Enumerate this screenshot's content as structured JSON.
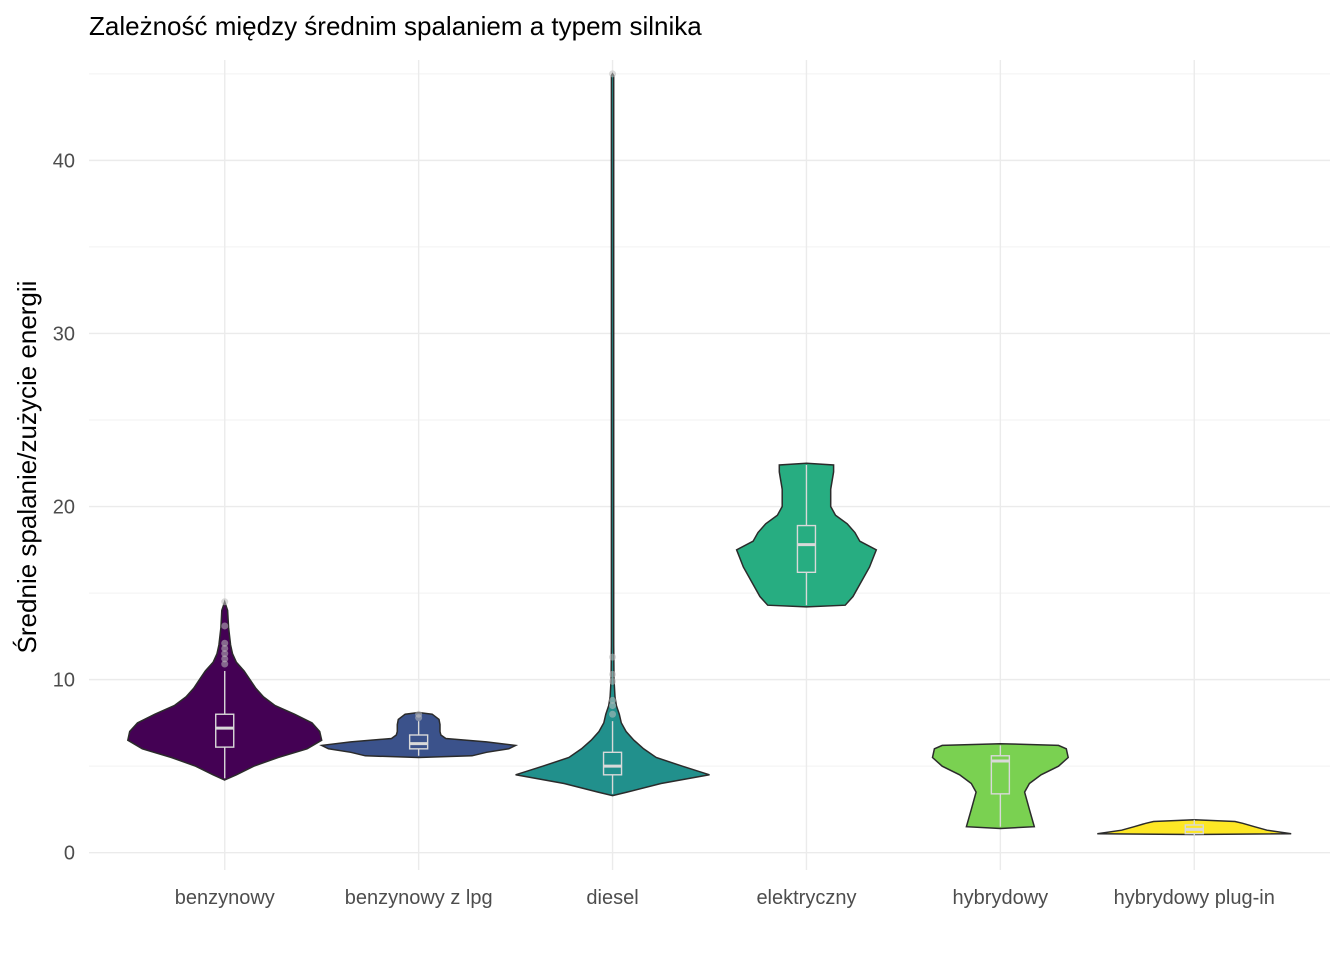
{
  "chart_data": {
    "type": "violin",
    "title": "Zależność między średnim spalaniem a typem silnika",
    "xlabel": "",
    "ylabel": "Średnie spalanie/zużycie energii",
    "ylim": [
      -1,
      45.8
    ],
    "y_ticks": [
      0,
      10,
      20,
      30,
      40
    ],
    "grid": true,
    "legend": "none",
    "categories": [
      "benzynowy",
      "benzynowy z lpg",
      "diesel",
      "elektryczny",
      "hybrydowy",
      "hybrydowy plug-in"
    ],
    "series": [
      {
        "name": "benzynowy",
        "color": "#440154",
        "box": {
          "q1": 6.1,
          "median": 7.2,
          "q3": 8.0,
          "lower": 4.3,
          "upper": 10.5
        },
        "outliers": [
          10.9,
          11.2,
          11.5,
          11.8,
          12.1,
          13.1,
          14.5
        ],
        "density": [
          [
            4.2,
            0.0
          ],
          [
            4.5,
            0.12
          ],
          [
            5.0,
            0.3
          ],
          [
            5.5,
            0.55
          ],
          [
            6.0,
            0.85
          ],
          [
            6.5,
            1.0
          ],
          [
            7.0,
            0.98
          ],
          [
            7.5,
            0.9
          ],
          [
            8.0,
            0.72
          ],
          [
            8.5,
            0.52
          ],
          [
            9.0,
            0.4
          ],
          [
            9.5,
            0.32
          ],
          [
            10.0,
            0.26
          ],
          [
            10.5,
            0.2
          ],
          [
            11.0,
            0.12
          ],
          [
            11.5,
            0.08
          ],
          [
            12.0,
            0.06
          ],
          [
            13.0,
            0.04
          ],
          [
            14.0,
            0.03
          ],
          [
            14.5,
            0.0
          ]
        ]
      },
      {
        "name": "benzynowy z lpg",
        "color": "#3b528b",
        "box": {
          "q1": 6.0,
          "median": 6.3,
          "q3": 6.8,
          "lower": 5.6,
          "upper": 7.6
        },
        "outliers": [
          7.8,
          8.0
        ],
        "density": [
          [
            5.5,
            0.0
          ],
          [
            5.6,
            0.55
          ],
          [
            5.8,
            0.7
          ],
          [
            6.0,
            0.93
          ],
          [
            6.2,
            1.0
          ],
          [
            6.4,
            0.7
          ],
          [
            6.6,
            0.28
          ],
          [
            6.8,
            0.23
          ],
          [
            7.0,
            0.22
          ],
          [
            7.4,
            0.22
          ],
          [
            7.7,
            0.21
          ],
          [
            8.0,
            0.14
          ],
          [
            8.1,
            0.0
          ]
        ]
      },
      {
        "name": "diesel",
        "color": "#21908c",
        "box": {
          "q1": 4.5,
          "median": 5.0,
          "q3": 5.8,
          "lower": 3.4,
          "upper": 7.6
        },
        "outliers": [
          8.0,
          8.5,
          8.8,
          9.9,
          10.3,
          11.3,
          45.0
        ],
        "density": [
          [
            3.3,
            0.0
          ],
          [
            3.5,
            0.15
          ],
          [
            4.0,
            0.5
          ],
          [
            4.5,
            1.0
          ],
          [
            5.0,
            0.72
          ],
          [
            5.5,
            0.45
          ],
          [
            6.0,
            0.32
          ],
          [
            6.5,
            0.22
          ],
          [
            7.0,
            0.14
          ],
          [
            7.5,
            0.09
          ],
          [
            8.0,
            0.07
          ],
          [
            8.5,
            0.04
          ],
          [
            9.0,
            0.025
          ],
          [
            10.0,
            0.015
          ],
          [
            12.0,
            0.012
          ],
          [
            44.9,
            0.012
          ],
          [
            45.0,
            0.0
          ]
        ]
      },
      {
        "name": "elektryczny",
        "color": "#27ad81",
        "box": {
          "q1": 16.2,
          "median": 17.8,
          "q3": 18.9,
          "lower": 14.3,
          "upper": 22.4
        },
        "outliers": [],
        "density": [
          [
            14.2,
            0.0
          ],
          [
            14.3,
            0.4
          ],
          [
            14.8,
            0.48
          ],
          [
            15.5,
            0.55
          ],
          [
            16.5,
            0.65
          ],
          [
            17.5,
            0.72
          ],
          [
            18.0,
            0.55
          ],
          [
            18.5,
            0.5
          ],
          [
            19.0,
            0.42
          ],
          [
            19.5,
            0.3
          ],
          [
            20.0,
            0.25
          ],
          [
            21.0,
            0.25
          ],
          [
            22.0,
            0.28
          ],
          [
            22.4,
            0.28
          ],
          [
            22.5,
            0.0
          ]
        ]
      },
      {
        "name": "hybrydowy",
        "color": "#7ad151",
        "box": {
          "q1": 3.4,
          "median": 5.3,
          "q3": 5.6,
          "lower": 1.5,
          "upper": 6.2
        },
        "outliers": [],
        "density": [
          [
            1.4,
            0.0
          ],
          [
            1.5,
            0.35
          ],
          [
            2.5,
            0.3
          ],
          [
            3.5,
            0.25
          ],
          [
            4.0,
            0.3
          ],
          [
            4.5,
            0.42
          ],
          [
            5.0,
            0.6
          ],
          [
            5.5,
            0.7
          ],
          [
            6.0,
            0.68
          ],
          [
            6.2,
            0.6
          ],
          [
            6.3,
            0.0
          ]
        ]
      },
      {
        "name": "hybrydowy plug-in",
        "color": "#fde725",
        "box": {
          "q1": 1.1,
          "median": 1.35,
          "q3": 1.6,
          "lower": 1.0,
          "upper": 1.9
        },
        "outliers": [],
        "density": [
          [
            1.05,
            0.0
          ],
          [
            1.1,
            1.0
          ],
          [
            1.3,
            0.75
          ],
          [
            1.5,
            0.62
          ],
          [
            1.7,
            0.5
          ],
          [
            1.8,
            0.42
          ],
          [
            1.9,
            0.0
          ]
        ]
      }
    ]
  }
}
